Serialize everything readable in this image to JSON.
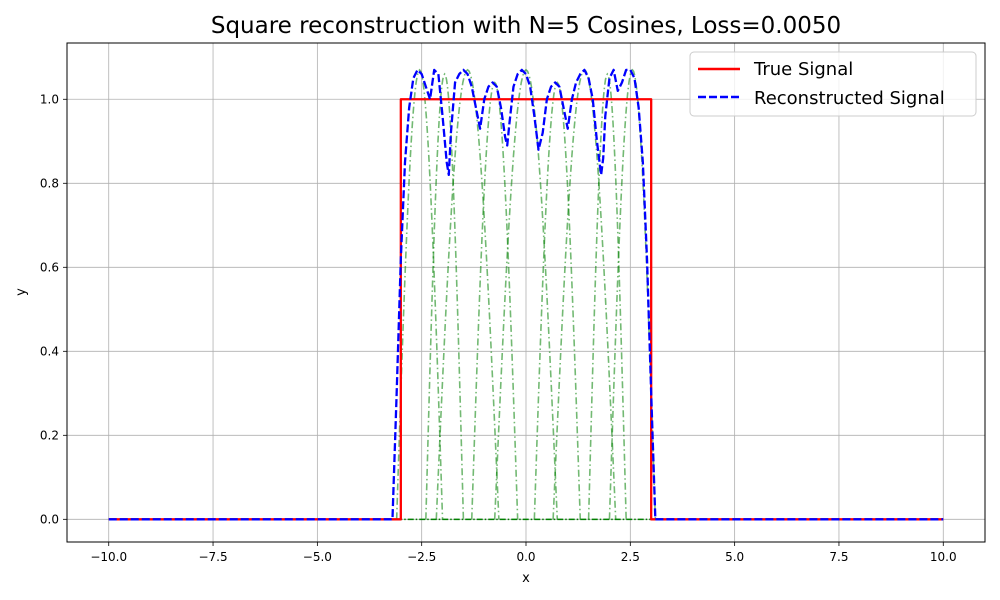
{
  "chart_data": {
    "type": "line",
    "title": "Square reconstruction with N=5 Cosines, Loss=0.0050",
    "xlabel": "x",
    "ylabel": "y",
    "xlim": [
      -11,
      11
    ],
    "ylim": [
      -0.054,
      1.134
    ],
    "xticks": [
      -10.0,
      -7.5,
      -5.0,
      -2.5,
      0.0,
      2.5,
      5.0,
      7.5,
      10.0
    ],
    "xtick_labels": [
      "−10.0",
      "−7.5",
      "−5.0",
      "−2.5",
      "0.0",
      "2.5",
      "5.0",
      "7.5",
      "10.0"
    ],
    "yticks": [
      0.0,
      0.2,
      0.4,
      0.6,
      0.8,
      1.0
    ],
    "ytick_labels": [
      "0.0",
      "0.2",
      "0.4",
      "0.6",
      "0.8",
      "1.0"
    ],
    "grid": true,
    "legend_position": "top-right",
    "colors": {
      "true": "#ff0000",
      "reconstructed": "#0000ff",
      "components": "#008000"
    },
    "series": [
      {
        "name": "True Signal",
        "style": "solid",
        "x": [
          -10.0,
          -3.0,
          -3.0,
          3.0,
          3.0,
          10.0
        ],
        "y": [
          0.0,
          0.0,
          1.0,
          1.0,
          0.0,
          0.0
        ]
      },
      {
        "name": "Reconstructed Signal",
        "style": "dashed",
        "x": [
          -10.0,
          -3.2,
          -3.1,
          -3.0,
          -2.9,
          -2.8,
          -2.7,
          -2.6,
          -2.5,
          -2.4,
          -2.3,
          -2.2,
          -2.1,
          -2.0,
          -1.9,
          -1.85,
          -1.8,
          -1.7,
          -1.6,
          -1.5,
          -1.4,
          -1.3,
          -1.2,
          -1.1,
          -1.0,
          -0.9,
          -0.8,
          -0.7,
          -0.6,
          -0.5,
          -0.45,
          -0.4,
          -0.3,
          -0.2,
          -0.1,
          0.0,
          0.1,
          0.2,
          0.3,
          0.4,
          0.5,
          0.6,
          0.7,
          0.8,
          0.9,
          1.0,
          1.1,
          1.2,
          1.3,
          1.4,
          1.5,
          1.6,
          1.7,
          1.8,
          1.85,
          1.9,
          2.0,
          2.1,
          2.2,
          2.3,
          2.4,
          2.5,
          2.6,
          2.7,
          2.8,
          2.9,
          3.0,
          3.1,
          3.2,
          10.0
        ],
        "y": [
          0.0,
          0.0,
          0.3,
          0.62,
          0.85,
          0.98,
          1.05,
          1.07,
          1.06,
          1.03,
          1.0,
          1.07,
          1.06,
          0.96,
          0.85,
          0.82,
          0.92,
          1.04,
          1.06,
          1.07,
          1.06,
          1.03,
          0.98,
          0.93,
          1.0,
          1.03,
          1.04,
          1.03,
          0.98,
          0.91,
          0.89,
          0.94,
          1.03,
          1.06,
          1.07,
          1.06,
          1.03,
          0.96,
          0.88,
          0.92,
          1.0,
          1.03,
          1.04,
          1.03,
          0.98,
          0.93,
          1.0,
          1.04,
          1.06,
          1.07,
          1.05,
          1.0,
          0.9,
          0.82,
          0.86,
          0.96,
          1.05,
          1.07,
          1.02,
          1.04,
          1.07,
          1.07,
          1.05,
          0.98,
          0.85,
          0.62,
          0.3,
          0.0,
          0.0,
          0.0
        ]
      }
    ],
    "components": [
      {
        "center": -2.55,
        "halfwidth": 0.55,
        "peak": 1.07
      },
      {
        "center": -1.95,
        "halfwidth": 0.45,
        "peak": 1.06
      },
      {
        "center": -1.4,
        "halfwidth": 0.75,
        "peak": 1.07
      },
      {
        "center": -0.75,
        "halfwidth": 0.55,
        "peak": 1.04
      },
      {
        "center": 0.0,
        "halfwidth": 0.75,
        "peak": 1.07
      },
      {
        "center": 0.75,
        "halfwidth": 0.55,
        "peak": 1.04
      },
      {
        "center": 1.4,
        "halfwidth": 0.75,
        "peak": 1.07
      },
      {
        "center": 1.95,
        "halfwidth": 0.45,
        "peak": 1.06
      },
      {
        "center": 2.55,
        "halfwidth": 0.55,
        "peak": 1.07
      }
    ]
  }
}
